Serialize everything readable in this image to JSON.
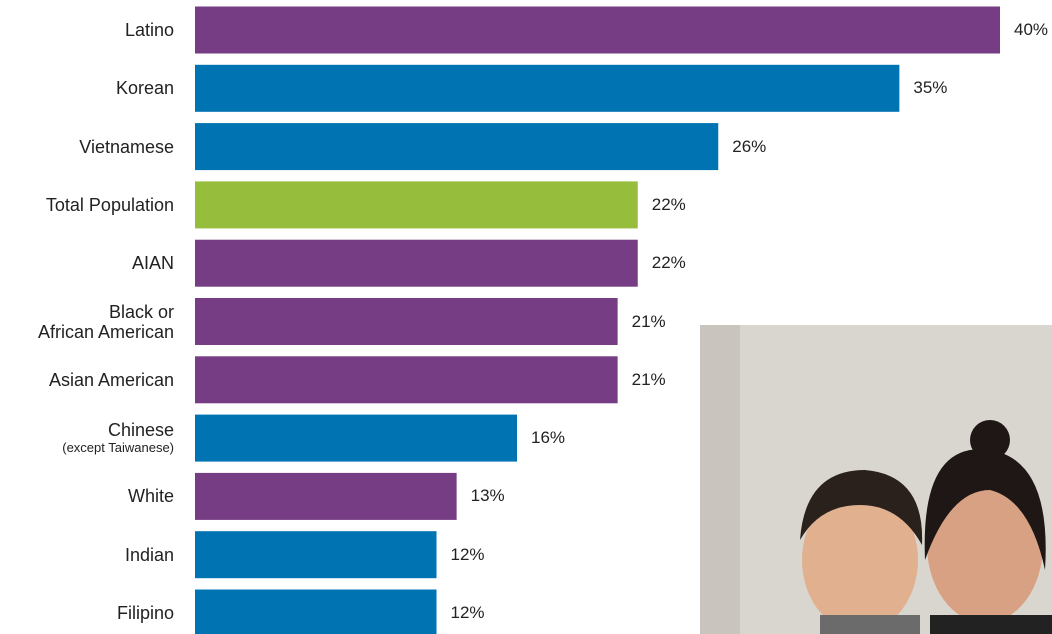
{
  "chart_data": {
    "type": "bar",
    "orientation": "horizontal",
    "categories": [
      "Latino",
      "Korean",
      "Vietnamese",
      "Total Population",
      "AIAN",
      "Black or\nAfrican American",
      "Asian American",
      "Chinese",
      "White",
      "Indian",
      "Filipino"
    ],
    "category_notes": [
      null,
      null,
      null,
      null,
      null,
      null,
      null,
      "(except Taiwanese)",
      null,
      null,
      null
    ],
    "values": [
      40,
      35,
      26,
      22,
      22,
      21,
      21,
      16,
      13,
      12,
      12
    ],
    "value_labels": [
      "40%",
      "35%",
      "26%",
      "22%",
      "22%",
      "21%",
      "21%",
      "16%",
      "13%",
      "12%",
      "12%"
    ],
    "colors": [
      "#763d84",
      "#0073b3",
      "#0073b3",
      "#96bd3c",
      "#763d84",
      "#763d84",
      "#763d84",
      "#0073b3",
      "#763d84",
      "#0073b3",
      "#0073b3"
    ],
    "xlim": [
      0,
      40
    ]
  }
}
